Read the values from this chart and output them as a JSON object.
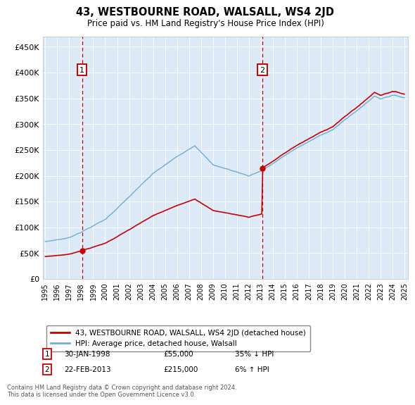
{
  "title": "43, WESTBOURNE ROAD, WALSALL, WS4 2JD",
  "subtitle": "Price paid vs. HM Land Registry's House Price Index (HPI)",
  "sale1_year": 1998.08,
  "sale1_price": 55000,
  "sale2_year": 2013.13,
  "sale2_price": 215000,
  "hpi_line_color": "#6baed6",
  "price_line_color": "#cc0000",
  "vline_color": "#cc0000",
  "marker_color": "#cc0000",
  "annotation_box_color": "#cc0000",
  "plot_bg_color": "#dce9f7",
  "legend_label_price": "43, WESTBOURNE ROAD, WALSALL, WS4 2JD (detached house)",
  "legend_label_hpi": "HPI: Average price, detached house, Walsall",
  "footer": "Contains HM Land Registry data © Crown copyright and database right 2024.\nThis data is licensed under the Open Government Licence v3.0.",
  "yticks": [
    0,
    50000,
    100000,
    150000,
    200000,
    250000,
    300000,
    350000,
    400000,
    450000
  ],
  "ylim": [
    0,
    470000
  ],
  "xlim_start": 1994.8,
  "xlim_end": 2025.3,
  "ann1_date": "30-JAN-1998",
  "ann1_price": "£55,000",
  "ann1_hpi": "35% ↓ HPI",
  "ann2_date": "22-FEB-2013",
  "ann2_price": "£215,000",
  "ann2_hpi": "6% ↑ HPI"
}
